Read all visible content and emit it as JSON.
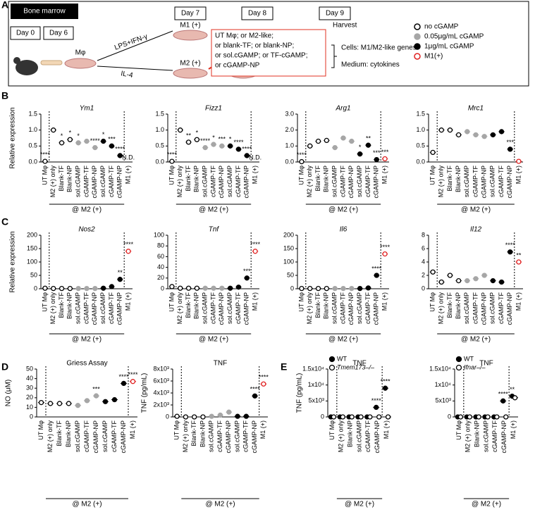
{
  "panel_labels": {
    "a": "A",
    "b": "B",
    "c": "C",
    "d": "D",
    "e": "E"
  },
  "panel_a": {
    "bone_marrow": "Bone marrow",
    "day0": "Day 0",
    "day6": "Day 6",
    "day7": "Day 7",
    "day8": "Day 8",
    "day9": "Day 9",
    "mphi": "Mφ",
    "lps": "LPS+IFN-γ",
    "il4": "IL-4",
    "m1": "M1 (+)",
    "m2": "M2 (+)",
    "treatments": [
      "UT Mφ; or M2-like;",
      "or blank-TF; or blank-NP;",
      "or sol.cGAMP; or TF-cGAMP;",
      "or cGAMP-NP"
    ],
    "harvest": "Harvest",
    "cells": "Cells: M1/M2-like genes",
    "medium": "Medium: cytokines"
  },
  "legend": [
    {
      "name": "no cGAMP",
      "style": "open"
    },
    {
      "name": "0.05μg/mL cGAMP",
      "style": "gray"
    },
    {
      "name": "1μg/mL cGAMP",
      "style": "black"
    },
    {
      "name": "M1(+)",
      "style": "red"
    }
  ],
  "styles": {
    "open": {
      "fill": "#ffffff",
      "stroke": "#000000"
    },
    "gray": {
      "fill": "#a6a6a6",
      "stroke": "#a6a6a6"
    },
    "black": {
      "fill": "#000000",
      "stroke": "#000000"
    },
    "red": {
      "fill": "#ffffff",
      "stroke": "#e02020"
    }
  },
  "chart_data": [
    {
      "type": "dot",
      "title": "Ym1",
      "y_label": "Relative expression",
      "group_label": "@ M2 (+)",
      "categories": [
        "UT Mφ",
        "M2 (+) only",
        "Blank-TF",
        "Blank-NP",
        "sol.cGAMP",
        "cGAMP-TF",
        "cGAMP-NP",
        "sol.cGAMP",
        "cGAMP-TF",
        "cGAMP-NP",
        "M1 (+)"
      ],
      "point_style": [
        "open",
        "open",
        "open",
        "open",
        "gray",
        "gray",
        "gray",
        "black",
        "black",
        "black",
        "red"
      ],
      "values": [
        0.02,
        1.0,
        0.6,
        0.7,
        0.6,
        0.65,
        0.45,
        0.65,
        0.5,
        0.2,
        null
      ],
      "annotations": [
        "****",
        null,
        "*",
        "*",
        "*",
        null,
        "****",
        "*",
        "***",
        "****",
        "N.D."
      ],
      "ylim": [
        0,
        1.5
      ],
      "yticks": [
        {
          "value": 0,
          "label": "0.0"
        },
        0.5,
        {
          "value": 1,
          "label": "1.0"
        },
        1.5
      ]
    },
    {
      "type": "dot",
      "title": "Fizz1",
      "group_label": "@ M2 (+)",
      "categories": [
        "UT Mφ",
        "M2 (+) only",
        "Blank-TF",
        "Blank-NP",
        "sol.cGAMP",
        "cGAMP-TF",
        "cGAMP-NP",
        "sol.cGAMP",
        "cGAMP-TF",
        "cGAMP-NP",
        "M1 (+)"
      ],
      "point_style": [
        "open",
        "open",
        "open",
        "open",
        "gray",
        "gray",
        "gray",
        "black",
        "black",
        "black",
        "red"
      ],
      "values": [
        0.02,
        1.0,
        0.62,
        0.7,
        0.45,
        0.55,
        0.5,
        0.5,
        0.4,
        0.2,
        null
      ],
      "annotations": [
        "****",
        null,
        "**",
        "*",
        "****",
        "*",
        "***",
        "*",
        "****",
        "****",
        "N.D."
      ],
      "ylim": [
        0,
        1.5
      ],
      "yticks": [
        {
          "value": 0,
          "label": "0.0"
        },
        0.5,
        {
          "value": 1,
          "label": "1.0"
        },
        1.5
      ]
    },
    {
      "type": "dot",
      "title": "Arg1",
      "group_label": "@ M2 (+)",
      "categories": [
        "UT Mφ",
        "M2 (+) only",
        "Blank-TF",
        "Blank-NP",
        "sol.cGAMP",
        "cGAMP-TF",
        "cGAMP-NP",
        "sol.cGAMP",
        "cGAMP-TF",
        "cGAMP-NP",
        "M1 (+)"
      ],
      "point_style": [
        "open",
        "open",
        "open",
        "open",
        "gray",
        "gray",
        "gray",
        "black",
        "black",
        "black",
        "red"
      ],
      "values": [
        0.02,
        1.0,
        1.3,
        1.35,
        0.9,
        1.5,
        1.3,
        0.5,
        1.05,
        0.15,
        0.2
      ],
      "annotations": [
        "****",
        null,
        null,
        null,
        null,
        null,
        null,
        "*",
        "**",
        "***",
        "***"
      ],
      "ylim": [
        0,
        3
      ],
      "yticks": [
        {
          "value": 0,
          "label": "0.0"
        },
        {
          "value": 1,
          "label": "1.0"
        },
        {
          "value": 2,
          "label": "2.0"
        },
        {
          "value": 3,
          "label": "3.0"
        }
      ]
    },
    {
      "type": "dot",
      "title": "Mrc1",
      "group_label": "@ M2 (+)",
      "categories": [
        "UT Mφ",
        "M2 (+) only",
        "Blank-TF",
        "Blank-NP",
        "sol.cGAMP",
        "cGAMP-TF",
        "cGAMP-NP",
        "sol.cGAMP",
        "cGAMP-TF",
        "cGAMP-NP",
        "M1 (+)"
      ],
      "point_style": [
        "open",
        "open",
        "open",
        "open",
        "gray",
        "gray",
        "gray",
        "black",
        "black",
        "black",
        "red"
      ],
      "values": [
        0.3,
        1.0,
        1.0,
        0.85,
        0.95,
        0.85,
        0.8,
        0.85,
        0.95,
        0.4,
        0.02
      ],
      "annotations": [
        null,
        null,
        null,
        null,
        null,
        null,
        null,
        null,
        null,
        "***",
        null
      ],
      "ylim": [
        0,
        1.5
      ],
      "yticks": [
        {
          "value": 0,
          "label": "0.0"
        },
        0.5,
        {
          "value": 1,
          "label": "1.0"
        },
        1.5
      ]
    },
    {
      "type": "dot",
      "title": "Nos2",
      "y_label": "Relative expression",
      "group_label": "@ M2 (+)",
      "categories": [
        "UT Mφ",
        "M2 (+) only",
        "Blank-TF",
        "Blank-NP",
        "sol.cGAMP",
        "cGAMP-TF",
        "cGAMP-NP",
        "sol.cGAMP",
        "cGAMP-TF",
        "cGAMP-NP",
        "M1 (+)"
      ],
      "point_style": [
        "open",
        "open",
        "open",
        "open",
        "gray",
        "gray",
        "gray",
        "black",
        "black",
        "black",
        "red"
      ],
      "values": [
        2,
        1,
        1,
        1,
        1,
        1,
        1,
        2,
        8,
        35,
        140
      ],
      "annotations": [
        null,
        null,
        null,
        null,
        null,
        null,
        null,
        null,
        null,
        "**",
        "****"
      ],
      "ylim": [
        0,
        200
      ],
      "yticks": [
        0,
        50,
        100,
        150,
        200
      ]
    },
    {
      "type": "dot",
      "title": "Tnf",
      "group_label": "@ M2 (+)",
      "categories": [
        "UT Mφ",
        "M2 (+) only",
        "Blank-TF",
        "Blank-NP",
        "sol.cGAMP",
        "cGAMP-TF",
        "cGAMP-NP",
        "sol.cGAMP",
        "cGAMP-TF",
        "cGAMP-NP",
        "M1 (+)"
      ],
      "point_style": [
        "open",
        "open",
        "open",
        "open",
        "gray",
        "gray",
        "gray",
        "black",
        "black",
        "black",
        "red"
      ],
      "values": [
        4,
        1,
        1,
        1,
        1,
        1,
        1,
        1,
        3,
        20,
        70
      ],
      "annotations": [
        null,
        null,
        null,
        null,
        null,
        null,
        null,
        null,
        null,
        "***",
        "****"
      ],
      "ylim": [
        0,
        100
      ],
      "yticks": [
        0,
        20,
        40,
        60,
        80,
        100
      ]
    },
    {
      "type": "dot",
      "title": "Il6",
      "group_label": "@ M2 (+)",
      "categories": [
        "UT Mφ",
        "M2 (+) only",
        "Blank-TF",
        "Blank-NP",
        "sol.cGAMP",
        "cGAMP-TF",
        "cGAMP-NP",
        "sol.cGAMP",
        "cGAMP-TF",
        "cGAMP-NP",
        "M1 (+)"
      ],
      "point_style": [
        "open",
        "open",
        "open",
        "open",
        "gray",
        "gray",
        "gray",
        "black",
        "black",
        "black",
        "red"
      ],
      "values": [
        1,
        1,
        1,
        1,
        1,
        1,
        1,
        1,
        3,
        50,
        130
      ],
      "annotations": [
        null,
        null,
        null,
        null,
        null,
        null,
        null,
        null,
        null,
        "****",
        "****"
      ],
      "ylim": [
        0,
        200
      ],
      "yticks": [
        0,
        50,
        100,
        150,
        200
      ]
    },
    {
      "type": "dot",
      "title": "Il12",
      "group_label": "@ M2 (+)",
      "categories": [
        "UT Mφ",
        "M2 (+) only",
        "Blank-TF",
        "Blank-NP",
        "sol.cGAMP",
        "cGAMP-TF",
        "cGAMP-NP",
        "sol.cGAMP",
        "cGAMP-TF",
        "cGAMP-NP",
        "M1 (+)"
      ],
      "point_style": [
        "open",
        "open",
        "open",
        "open",
        "gray",
        "gray",
        "gray",
        "black",
        "black",
        "black",
        "red"
      ],
      "values": [
        2.5,
        1,
        2,
        1.2,
        1.2,
        1.5,
        2,
        1.2,
        1,
        5.5,
        4
      ],
      "annotations": [
        null,
        null,
        null,
        null,
        null,
        null,
        null,
        null,
        null,
        "****",
        "**"
      ],
      "ylim": [
        0,
        8
      ],
      "yticks": [
        0,
        2,
        4,
        6,
        8
      ]
    },
    {
      "type": "dot",
      "title": "Griess Assay",
      "y_label": "NO (μM)",
      "group_label": "@ M2 (+)",
      "categories": [
        "UT Mφ",
        "M2 (+) only",
        "Blank-TF",
        "Blank-NP",
        "sol.cGAMP",
        "cGAMP-TF",
        "cGAMP-NP",
        "sol.cGAMP",
        "cGAMP-TF",
        "cGAMP-NP",
        "M1 (+)"
      ],
      "point_style": [
        "open",
        "open",
        "open",
        "open",
        "gray",
        "gray",
        "gray",
        "black",
        "black",
        "black",
        "red"
      ],
      "values": [
        15,
        14,
        14,
        14,
        12,
        17,
        22,
        16,
        18,
        35,
        37
      ],
      "annotations": [
        null,
        null,
        null,
        null,
        null,
        null,
        "***",
        null,
        null,
        "****",
        "****"
      ],
      "ylim": [
        0,
        50
      ],
      "yticks": [
        0,
        10,
        20,
        30,
        40,
        50
      ]
    },
    {
      "type": "dot",
      "title": "TNF",
      "y_label": "TNF (pg/mL)",
      "group_label": "@ M2 (+)",
      "categories": [
        "UT Mφ",
        "M2 (+) only",
        "Blank-TF",
        "Blank-NP",
        "sol.cGAMP",
        "cGAMP-TF",
        "cGAMP-NP",
        "sol.cGAMP",
        "cGAMP-TF",
        "cGAMP-NP",
        "M1 (+)"
      ],
      "point_style": [
        "open",
        "open",
        "open",
        "open",
        "gray",
        "gray",
        "gray",
        "black",
        "black",
        "black",
        "red"
      ],
      "values": [
        100,
        0,
        0,
        0,
        100,
        300,
        800,
        100,
        100,
        3500,
        5500
      ],
      "annotations": [
        null,
        null,
        null,
        null,
        null,
        null,
        null,
        null,
        null,
        "****",
        "****"
      ],
      "ylim": [
        0,
        8000
      ],
      "yticks": [
        0,
        {
          "value": 2000,
          "label": "2x10³"
        },
        {
          "value": 4000,
          "label": "4x10³"
        },
        {
          "value": 6000,
          "label": "6x10³"
        },
        {
          "value": 8000,
          "label": "8x10³"
        }
      ]
    },
    {
      "type": "dot",
      "title": "TNF",
      "y_label": "TNF (pg/mL)",
      "group_label": "@ M2 (+)",
      "categories": [
        "UT Mφ",
        "M2 (+) only",
        "Blank-NP",
        "sol.cGAMP",
        "cGAMP-TF",
        "cGAMP-NP",
        "M1 (+)"
      ],
      "series": [
        {
          "name": "WT",
          "style": "black",
          "values": [
            0,
            0,
            0,
            0,
            0,
            3000,
            9000
          ],
          "annotations": [
            null,
            null,
            null,
            null,
            null,
            "****",
            "****"
          ]
        },
        {
          "name": "Tmem173–/–",
          "style": "open",
          "values": [
            0,
            0,
            0,
            0,
            0,
            0,
            0
          ]
        }
      ],
      "ylim": [
        0,
        15000
      ],
      "yticks": [
        0,
        {
          "value": 5000,
          "label": "5x10³"
        },
        {
          "value": 10000,
          "label": "1x10⁴"
        },
        {
          "value": 15000,
          "label": "1.5x10⁴"
        }
      ]
    },
    {
      "type": "dot",
      "title": "TNF",
      "group_label": "@ M2 (+)",
      "categories": [
        "UT Mφ",
        "M2 (+) only",
        "Blank-NP",
        "sol.cGAMP",
        "cGAMP-TF",
        "cGAMP-NP",
        "M1 (+)"
      ],
      "series": [
        {
          "name": "WT",
          "style": "black",
          "values": [
            0,
            0,
            0,
            0,
            0,
            5000,
            6500
          ],
          "annotations": [
            null,
            null,
            null,
            null,
            null,
            "****",
            "**"
          ]
        },
        {
          "name": "Ifnar–/–",
          "style": "open",
          "values": [
            0,
            0,
            0,
            0,
            0,
            0,
            6000
          ]
        }
      ],
      "ylim": [
        0,
        15000
      ],
      "yticks": [
        0,
        {
          "value": 5000,
          "label": "5x10³"
        },
        {
          "value": 10000,
          "label": "1x10⁴"
        },
        {
          "value": 15000,
          "label": "1.5x10⁴"
        }
      ]
    }
  ]
}
